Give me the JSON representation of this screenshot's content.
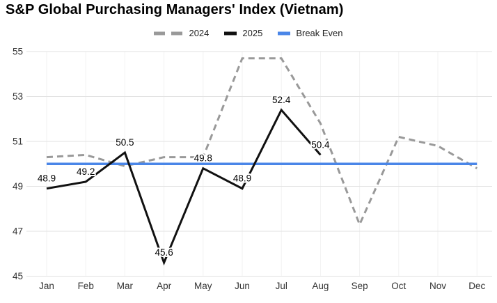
{
  "title": "S&P Global Purchasing Managers' Index (Vietnam)",
  "chart_data": {
    "type": "line",
    "title": "S&P Global Purchasing Managers' Index (Vietnam)",
    "categories": [
      "Jan",
      "Feb",
      "Mar",
      "Apr",
      "May",
      "Jun",
      "Jul",
      "Aug",
      "Sep",
      "Oct",
      "Nov",
      "Dec"
    ],
    "series": [
      {
        "name": "2024",
        "color": "#999999",
        "dash": "9 6",
        "width": 3,
        "z": 1,
        "values": [
          50.3,
          50.4,
          49.9,
          50.3,
          50.3,
          54.7,
          54.7,
          51.8,
          47.3,
          51.2,
          50.8,
          49.8
        ]
      },
      {
        "name": "2025",
        "color": "#111111",
        "dash": null,
        "width": 3,
        "z": 3,
        "values": [
          48.9,
          49.2,
          50.5,
          45.6,
          49.8,
          48.9,
          52.4,
          50.4
        ],
        "point_labels": [
          "48.9",
          "49.2",
          "50.5",
          "45.6",
          "49.8",
          "48.9",
          "52.4",
          "50.4"
        ]
      },
      {
        "name": "Break Even",
        "color": "#4a86e8",
        "dash": null,
        "width": 3.5,
        "z": 2,
        "values": [
          50,
          50,
          50,
          50,
          50,
          50,
          50,
          50,
          50,
          50,
          50,
          50
        ]
      }
    ],
    "yticks": [
      45,
      47,
      49,
      51,
      53,
      55
    ],
    "ylim": [
      45,
      55
    ],
    "xlabel": "",
    "ylabel": "",
    "grid": "horizontal strong, vertical faint",
    "legend_position": "top-center",
    "colors": {
      "grid": "#e2e2e2",
      "grid_vertical": "#f2f2f2",
      "axis_text": "#333333",
      "label_text": "#000000",
      "background": "#ffffff"
    }
  }
}
